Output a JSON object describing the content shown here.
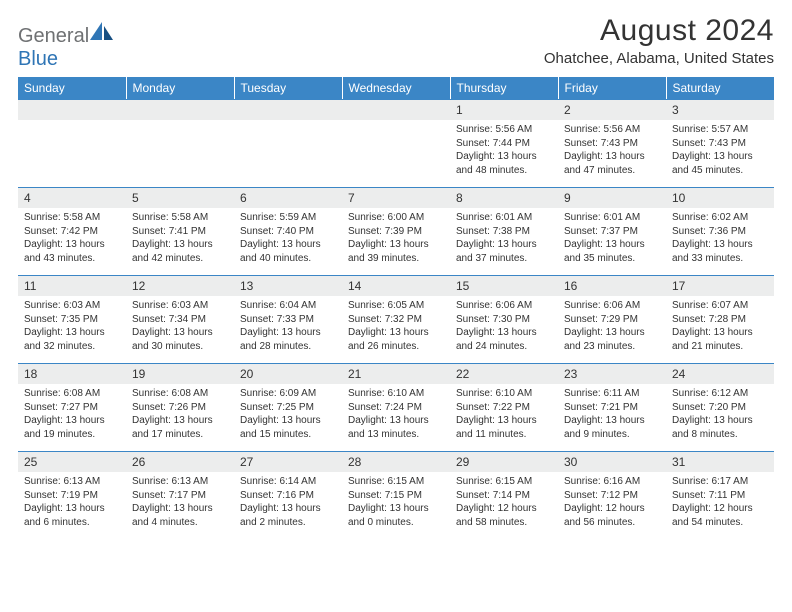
{
  "brand": {
    "text1": "General",
    "text2": "Blue",
    "text_color1": "#6f7173",
    "text_color2": "#2f75b5"
  },
  "title": "August 2024",
  "location": "Ohatchee, Alabama, United States",
  "colors": {
    "header_bg": "#3b86c6",
    "header_fg": "#ffffff",
    "daynum_bg": "#eceded",
    "rule": "#3b86c6",
    "text": "#333333",
    "page_bg": "#ffffff"
  },
  "day_headers": [
    "Sunday",
    "Monday",
    "Tuesday",
    "Wednesday",
    "Thursday",
    "Friday",
    "Saturday"
  ],
  "weeks": [
    [
      null,
      null,
      null,
      null,
      {
        "n": "1",
        "sr": "5:56 AM",
        "ss": "7:44 PM",
        "dl": "13 hours and 48 minutes."
      },
      {
        "n": "2",
        "sr": "5:56 AM",
        "ss": "7:43 PM",
        "dl": "13 hours and 47 minutes."
      },
      {
        "n": "3",
        "sr": "5:57 AM",
        "ss": "7:43 PM",
        "dl": "13 hours and 45 minutes."
      }
    ],
    [
      {
        "n": "4",
        "sr": "5:58 AM",
        "ss": "7:42 PM",
        "dl": "13 hours and 43 minutes."
      },
      {
        "n": "5",
        "sr": "5:58 AM",
        "ss": "7:41 PM",
        "dl": "13 hours and 42 minutes."
      },
      {
        "n": "6",
        "sr": "5:59 AM",
        "ss": "7:40 PM",
        "dl": "13 hours and 40 minutes."
      },
      {
        "n": "7",
        "sr": "6:00 AM",
        "ss": "7:39 PM",
        "dl": "13 hours and 39 minutes."
      },
      {
        "n": "8",
        "sr": "6:01 AM",
        "ss": "7:38 PM",
        "dl": "13 hours and 37 minutes."
      },
      {
        "n": "9",
        "sr": "6:01 AM",
        "ss": "7:37 PM",
        "dl": "13 hours and 35 minutes."
      },
      {
        "n": "10",
        "sr": "6:02 AM",
        "ss": "7:36 PM",
        "dl": "13 hours and 33 minutes."
      }
    ],
    [
      {
        "n": "11",
        "sr": "6:03 AM",
        "ss": "7:35 PM",
        "dl": "13 hours and 32 minutes."
      },
      {
        "n": "12",
        "sr": "6:03 AM",
        "ss": "7:34 PM",
        "dl": "13 hours and 30 minutes."
      },
      {
        "n": "13",
        "sr": "6:04 AM",
        "ss": "7:33 PM",
        "dl": "13 hours and 28 minutes."
      },
      {
        "n": "14",
        "sr": "6:05 AM",
        "ss": "7:32 PM",
        "dl": "13 hours and 26 minutes."
      },
      {
        "n": "15",
        "sr": "6:06 AM",
        "ss": "7:30 PM",
        "dl": "13 hours and 24 minutes."
      },
      {
        "n": "16",
        "sr": "6:06 AM",
        "ss": "7:29 PM",
        "dl": "13 hours and 23 minutes."
      },
      {
        "n": "17",
        "sr": "6:07 AM",
        "ss": "7:28 PM",
        "dl": "13 hours and 21 minutes."
      }
    ],
    [
      {
        "n": "18",
        "sr": "6:08 AM",
        "ss": "7:27 PM",
        "dl": "13 hours and 19 minutes."
      },
      {
        "n": "19",
        "sr": "6:08 AM",
        "ss": "7:26 PM",
        "dl": "13 hours and 17 minutes."
      },
      {
        "n": "20",
        "sr": "6:09 AM",
        "ss": "7:25 PM",
        "dl": "13 hours and 15 minutes."
      },
      {
        "n": "21",
        "sr": "6:10 AM",
        "ss": "7:24 PM",
        "dl": "13 hours and 13 minutes."
      },
      {
        "n": "22",
        "sr": "6:10 AM",
        "ss": "7:22 PM",
        "dl": "13 hours and 11 minutes."
      },
      {
        "n": "23",
        "sr": "6:11 AM",
        "ss": "7:21 PM",
        "dl": "13 hours and 9 minutes."
      },
      {
        "n": "24",
        "sr": "6:12 AM",
        "ss": "7:20 PM",
        "dl": "13 hours and 8 minutes."
      }
    ],
    [
      {
        "n": "25",
        "sr": "6:13 AM",
        "ss": "7:19 PM",
        "dl": "13 hours and 6 minutes."
      },
      {
        "n": "26",
        "sr": "6:13 AM",
        "ss": "7:17 PM",
        "dl": "13 hours and 4 minutes."
      },
      {
        "n": "27",
        "sr": "6:14 AM",
        "ss": "7:16 PM",
        "dl": "13 hours and 2 minutes."
      },
      {
        "n": "28",
        "sr": "6:15 AM",
        "ss": "7:15 PM",
        "dl": "13 hours and 0 minutes."
      },
      {
        "n": "29",
        "sr": "6:15 AM",
        "ss": "7:14 PM",
        "dl": "12 hours and 58 minutes."
      },
      {
        "n": "30",
        "sr": "6:16 AM",
        "ss": "7:12 PM",
        "dl": "12 hours and 56 minutes."
      },
      {
        "n": "31",
        "sr": "6:17 AM",
        "ss": "7:11 PM",
        "dl": "12 hours and 54 minutes."
      }
    ]
  ],
  "labels": {
    "sunrise": "Sunrise:",
    "sunset": "Sunset:",
    "daylight": "Daylight:"
  }
}
